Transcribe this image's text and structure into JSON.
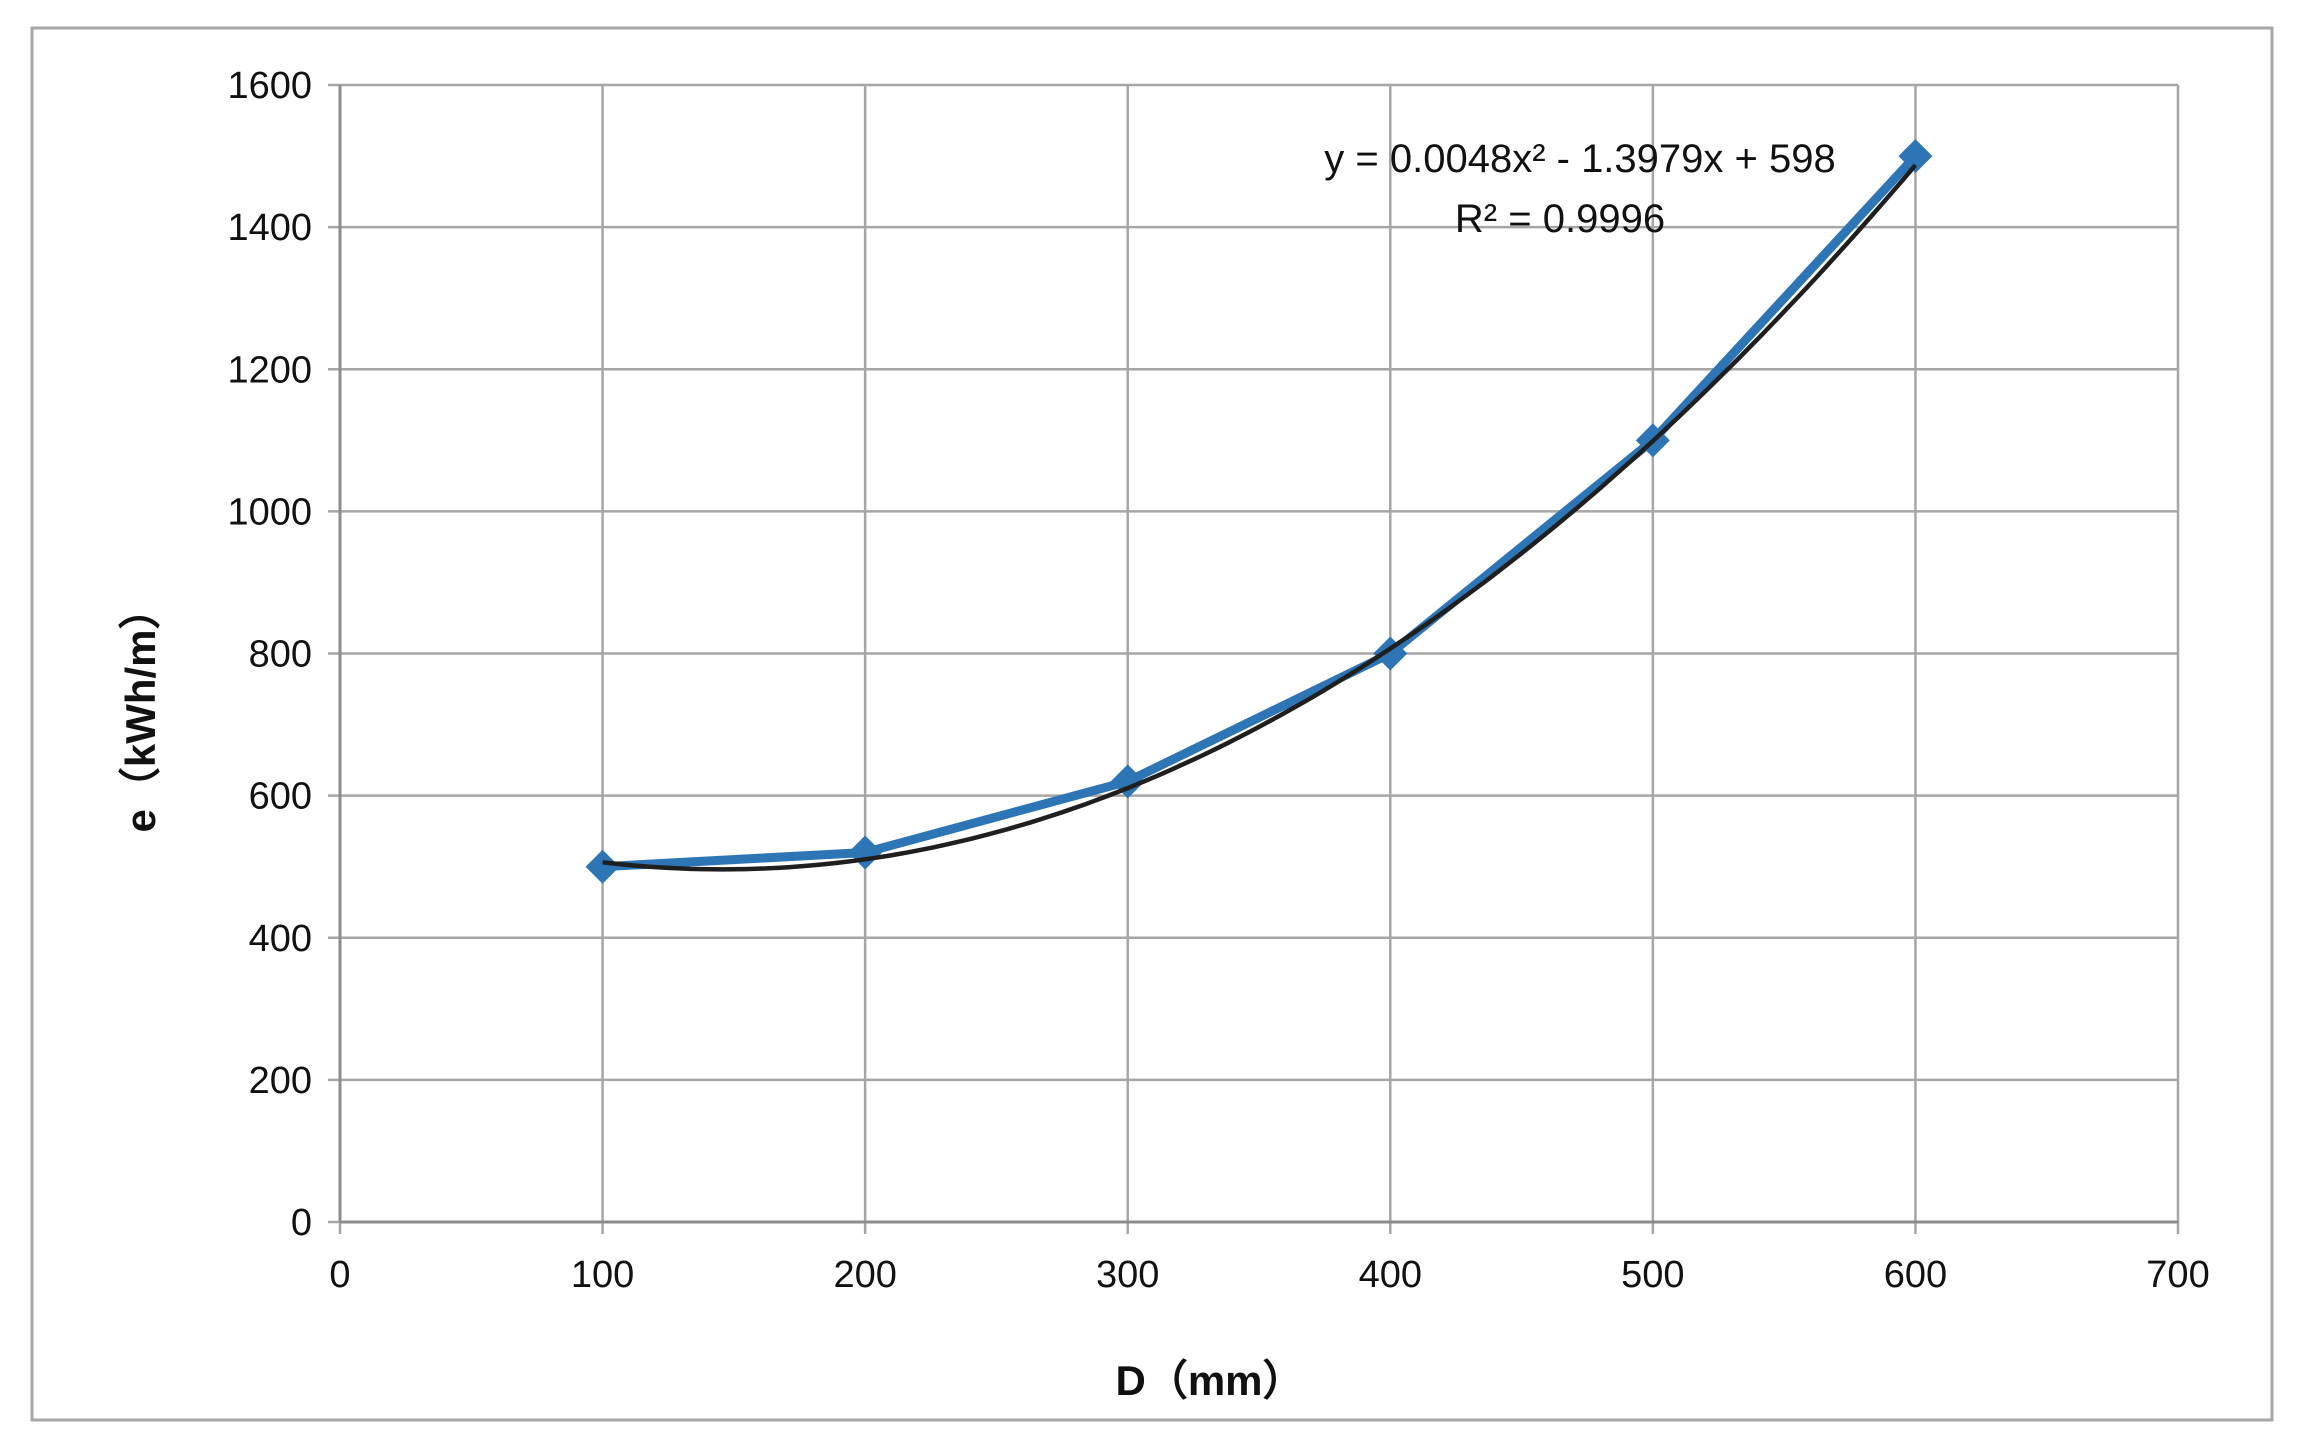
{
  "chart_data": {
    "type": "scatter",
    "xlabel": "D（mm）",
    "ylabel": "e（kWh/m）",
    "xlim": [
      0,
      700
    ],
    "ylim": [
      0,
      1600
    ],
    "x_ticks": [
      0,
      100,
      200,
      300,
      400,
      500,
      600,
      700
    ],
    "y_ticks": [
      0,
      200,
      400,
      600,
      800,
      1000,
      1200,
      1400,
      1600
    ],
    "grid": true,
    "legend": "none",
    "series": [
      {
        "color": "#2e75b6",
        "marker": "diamond",
        "x": [
          100,
          200,
          300,
          400,
          500,
          600
        ],
        "y": [
          500,
          520,
          620,
          800,
          1100,
          1500
        ]
      }
    ],
    "trendline": {
      "type": "polynomial-2",
      "coefficients": [
        0.0048,
        -1.3979,
        598
      ],
      "color": "#1f1f1f"
    },
    "annotations": [
      "y = 0.0048x² - 1.3979x + 598",
      "R² = 0.9996"
    ]
  }
}
